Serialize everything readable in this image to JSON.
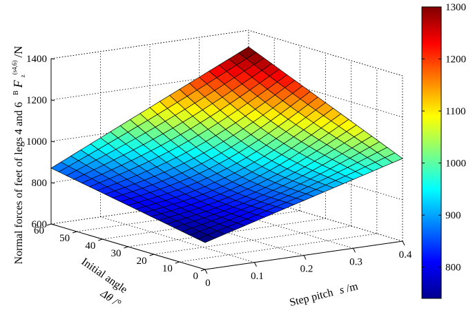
{
  "chart_data": {
    "type": "surface",
    "title": "",
    "xlabel": {
      "prefix": "Step pitch",
      "symbol": "s",
      "unit": "/m"
    },
    "ylabel": {
      "prefix": "Initial angle",
      "symbol": "Δθ",
      "unit": "/°"
    },
    "zlabel": {
      "prefix": "Normal forces of feet of legs 4 and 6",
      "sup": "B",
      "symbol": "F",
      "sub": "z",
      "subsup": "(s4,6)",
      "unit": "/N"
    },
    "x_ticks": [
      "0",
      "0.1",
      "0.2",
      "0.3",
      "0.4"
    ],
    "y_ticks": [
      "0",
      "10",
      "20",
      "30",
      "40",
      "50",
      "60"
    ],
    "z_ticks": [
      "600",
      "800",
      "1000",
      "1200",
      "1400"
    ],
    "colorbar_ticks": [
      "800",
      "900",
      "1000",
      "1100",
      "1200",
      "1300"
    ],
    "xlim": [
      0,
      0.4
    ],
    "ylim": [
      0,
      60
    ],
    "zlim": [
      600,
      1400
    ],
    "clim": [
      740,
      1300
    ],
    "grid": true,
    "colormap": "jet",
    "mesh_size": [
      21,
      21
    ],
    "corners": [
      {
        "x": 0.0,
        "y": 0,
        "z": 730
      },
      {
        "x": 0.4,
        "y": 0,
        "z": 1000
      },
      {
        "x": 0.0,
        "y": 60,
        "z": 870
      },
      {
        "x": 0.4,
        "y": 60,
        "z": 1320
      }
    ]
  }
}
